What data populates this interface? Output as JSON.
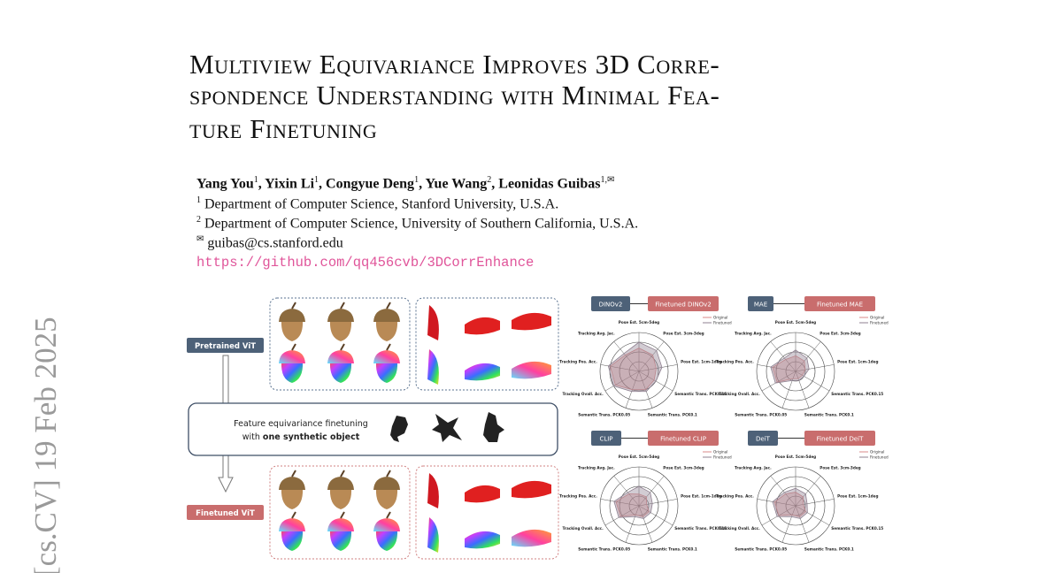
{
  "paper": {
    "title_lines": [
      "Multiview Equivariance Improves 3D Corre-",
      "spondence Understanding with Minimal Fea-",
      "ture Finetuning"
    ],
    "authors": [
      {
        "name": "Yang You",
        "sup": "1",
        "sep": ", "
      },
      {
        "name": "Yixin Li",
        "sup": "1",
        "sep": ", "
      },
      {
        "name": "Congyue Deng",
        "sup": "1",
        "sep": ", "
      },
      {
        "name": "Yue Wang",
        "sup": "2",
        "sep": ", "
      },
      {
        "name": "Leonidas Guibas",
        "sup": "1,✉"
      }
    ],
    "affiliations": [
      {
        "sup": "1",
        "text": "Department of Computer Science, Stanford University, U.S.A."
      },
      {
        "sup": "2",
        "text": "Department of Computer Science, University of Southern California, U.S.A."
      },
      {
        "sup": "✉",
        "text": "guibas@cs.stanford.edu"
      }
    ],
    "url": "https://github.com/qq456cvb/3DCorrEnhance",
    "arxiv_stamp": "[cs.CV]  19 Feb 2025"
  },
  "figure": {
    "pretrained_label": "Pretrained ViT",
    "finetuned_label": "Finetuned ViT",
    "middle_line1": "Feature equivariance finetuning",
    "middle_line2_prefix": "with ",
    "middle_line2_bold": "one synthetic object"
  },
  "chart_data": {
    "type": "radar",
    "axes": [
      "Pose Est. 5cm-5deg",
      "Pose Est. 3cm-3deg",
      "Pose Est. 1cm-1deg",
      "Semantic Trans. PCK0.15",
      "Semantic Trans. PCK0.1",
      "Semantic Trans. PCK0.05",
      "Tracking Ovall. Acc.",
      "Tracking Pos. Acc.",
      "Tracking Avg. Jac."
    ],
    "panels": [
      {
        "model": "DINOv2",
        "finetuned": "Finetuned DINOv2",
        "series": [
          {
            "name": "Original",
            "color": "#d98a8a",
            "values": [
              0.6,
              0.55,
              0.45,
              0.45,
              0.5,
              0.5,
              0.7,
              0.75,
              0.55
            ]
          },
          {
            "name": "Finetuned",
            "color": "#8f8090",
            "values": [
              0.75,
              0.7,
              0.6,
              0.5,
              0.55,
              0.55,
              0.75,
              0.8,
              0.6
            ]
          }
        ]
      },
      {
        "model": "MAE",
        "finetuned": "Finetuned MAE",
        "series": [
          {
            "name": "Original",
            "color": "#d98a8a",
            "values": [
              0.4,
              0.35,
              0.25,
              0.2,
              0.2,
              0.2,
              0.55,
              0.6,
              0.4
            ]
          },
          {
            "name": "Finetuned",
            "color": "#8f8090",
            "values": [
              0.55,
              0.45,
              0.35,
              0.25,
              0.25,
              0.25,
              0.6,
              0.65,
              0.45
            ]
          }
        ]
      },
      {
        "model": "CLIP",
        "finetuned": "Finetuned CLIP",
        "series": [
          {
            "name": "Original",
            "color": "#d98a8a",
            "values": [
              0.3,
              0.3,
              0.2,
              0.3,
              0.3,
              0.25,
              0.55,
              0.6,
              0.4
            ]
          },
          {
            "name": "Finetuned",
            "color": "#8f8090",
            "values": [
              0.5,
              0.45,
              0.35,
              0.35,
              0.35,
              0.3,
              0.6,
              0.65,
              0.45
            ]
          }
        ]
      },
      {
        "model": "DeiT",
        "finetuned": "Finetuned DeiT",
        "series": [
          {
            "name": "Original",
            "color": "#d98a8a",
            "values": [
              0.35,
              0.3,
              0.2,
              0.3,
              0.3,
              0.25,
              0.5,
              0.55,
              0.4
            ]
          },
          {
            "name": "Finetuned",
            "color": "#8f8090",
            "values": [
              0.45,
              0.4,
              0.3,
              0.35,
              0.35,
              0.3,
              0.55,
              0.6,
              0.45
            ]
          }
        ]
      }
    ]
  }
}
